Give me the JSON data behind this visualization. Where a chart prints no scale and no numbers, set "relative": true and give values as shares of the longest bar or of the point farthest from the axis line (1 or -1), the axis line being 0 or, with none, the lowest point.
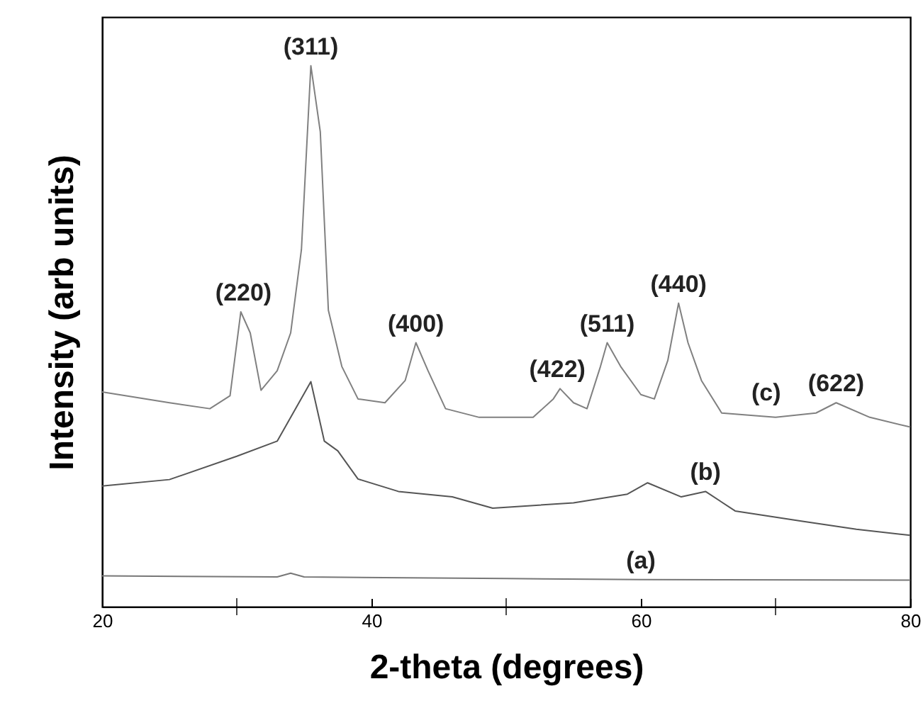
{
  "chart_data": {
    "type": "line",
    "relative": true,
    "xlabel": "2-theta (degrees)",
    "ylabel": "Intensity (arb units)",
    "xlim": [
      20,
      80
    ],
    "xticks": [
      20,
      {
        "value": 30,
        "label": null
      },
      40,
      {
        "value": 50,
        "label": null
      },
      60,
      {
        "value": 70,
        "label": null
      },
      80
    ],
    "series": [
      {
        "color": "#808080",
        "x": [
          20,
          25,
          28,
          29.5,
          30.3,
          31,
          31.8,
          33,
          34,
          34.8,
          35.5,
          36.2,
          36.8,
          37.8,
          39,
          41,
          42.5,
          43.3,
          44.2,
          45.5,
          48,
          50,
          52,
          53.5,
          54,
          55,
          56,
          57,
          57.5,
          58.5,
          60,
          61,
          62,
          62.8,
          63.5,
          64.5,
          66,
          70,
          73,
          74.5,
          77,
          80
        ],
        "values": [
          0.397,
          0.377,
          0.366,
          0.39,
          0.545,
          0.506,
          0.4,
          0.436,
          0.506,
          0.66,
          1.0,
          0.878,
          0.548,
          0.444,
          0.384,
          0.377,
          0.418,
          0.488,
          0.436,
          0.366,
          0.35,
          0.35,
          0.35,
          0.384,
          0.403,
          0.377,
          0.366,
          0.444,
          0.488,
          0.444,
          0.392,
          0.384,
          0.455,
          0.561,
          0.488,
          0.418,
          0.358,
          0.35,
          0.358,
          0.377,
          0.35,
          0.332
        ]
      },
      {
        "color": "#555555",
        "x": [
          20,
          25,
          30,
          33,
          35.5,
          36.5,
          37.5,
          39,
          42,
          46,
          49,
          55,
          59,
          60.5,
          63,
          64.8,
          67,
          72,
          76,
          80
        ],
        "values": [
          0.223,
          0.235,
          0.278,
          0.306,
          0.416,
          0.306,
          0.288,
          0.236,
          0.213,
          0.203,
          0.182,
          0.192,
          0.208,
          0.229,
          0.203,
          0.213,
          0.177,
          0.158,
          0.143,
          0.132
        ]
      },
      {
        "color": "#777777",
        "x": [
          20,
          33,
          34,
          35,
          50,
          60,
          80
        ],
        "values": [
          0.057,
          0.055,
          0.062,
          0.055,
          0.052,
          0.05,
          0.049
        ]
      }
    ],
    "annotations": [
      {
        "text": "(311)",
        "x": 35.5,
        "y": 1.0
      },
      {
        "text": "(220)",
        "x": 30.5,
        "y": 0.545
      },
      {
        "text": "(400)",
        "x": 43.3,
        "y": 0.488
      },
      {
        "text": "(422)",
        "x": 53.8,
        "y": 0.403
      },
      {
        "text": "(511)",
        "x": 57.5,
        "y": 0.488
      },
      {
        "text": "(440)",
        "x": 62.8,
        "y": 0.561
      },
      {
        "text": "(622)",
        "x": 74.5,
        "y": 0.377
      },
      {
        "text": "(c)",
        "x": 69.3,
        "y": 0.36
      },
      {
        "text": "(b)",
        "x": 64.8,
        "y": 0.213
      },
      {
        "text": "(a)",
        "x": 60,
        "y": 0.05
      }
    ]
  }
}
